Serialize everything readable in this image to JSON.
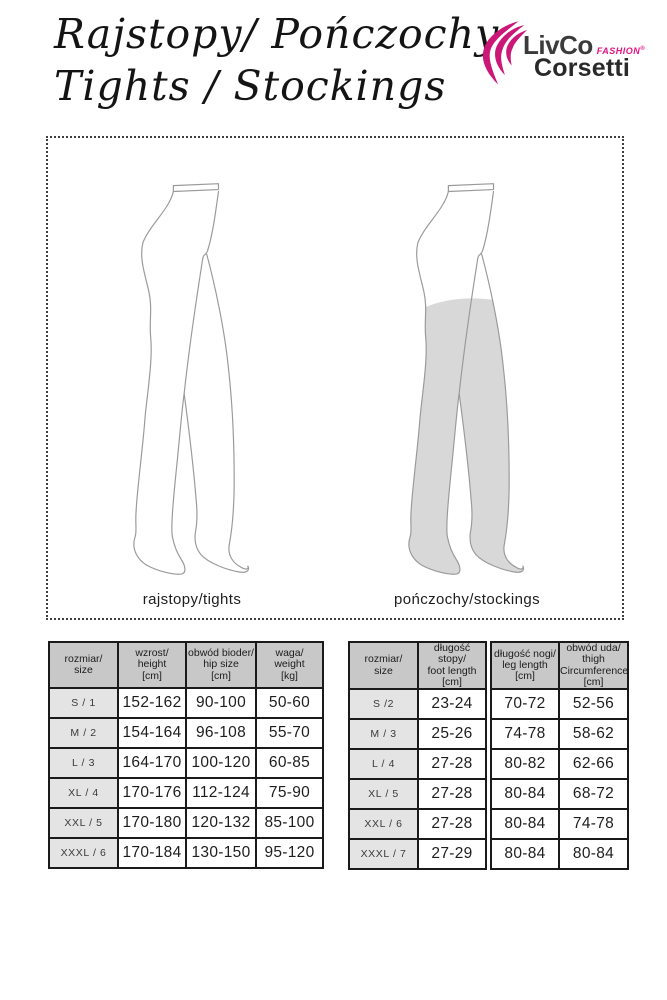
{
  "header": {
    "title_line1": "Rajstopy/ Pończochy",
    "title_line2": "Tights / Stockings",
    "logo": {
      "livco": "LivCo",
      "fashion": "FASHION",
      "registered": "®",
      "corsetti": "Corsetti",
      "swoosh_color": "#cb1777",
      "fashion_color": "#e31380",
      "dark_color": "#3b3b3b"
    }
  },
  "figures": {
    "tights_label": "rajstopy/tights",
    "stockings_label": "pończochy/stockings",
    "outline_color": "#9a9a9a",
    "stocking_fill": "#d8d8d8"
  },
  "size_tables": {
    "colors": {
      "header_bg": "#c8c8c8",
      "size_col_bg": "#e4e4e4",
      "border": "#1a1a1a"
    },
    "tights": {
      "headers": [
        "rozmiar/\nsize",
        "wzrost/\nheight\n[cm]",
        "obwód bioder/\nhip size\n[cm]",
        "waga/\nweight\n[kg]"
      ],
      "rows": [
        {
          "size": "S / 1",
          "c1": "152-162",
          "c2": "90-100",
          "c3": "50-60"
        },
        {
          "size": "M / 2",
          "c1": "154-164",
          "c2": "96-108",
          "c3": "55-70"
        },
        {
          "size": "L / 3",
          "c1": "164-170",
          "c2": "100-120",
          "c3": "60-85"
        },
        {
          "size": "XL / 4",
          "c1": "170-176",
          "c2": "112-124",
          "c3": "75-90"
        },
        {
          "size": "XXL / 5",
          "c1": "170-180",
          "c2": "120-132",
          "c3": "85-100"
        },
        {
          "size": "XXXL / 6",
          "c1": "170-184",
          "c2": "130-150",
          "c3": "95-120"
        }
      ]
    },
    "stockings": {
      "headers": [
        "rozmiar/\nsize",
        "długość stopy/\nfoot length\n[cm]",
        "długość nogi/\nleg length\n[cm]",
        "obwód uda/\nthigh\nCircumference\n[cm]"
      ],
      "rows": [
        {
          "size": "S /2",
          "c1": "23-24",
          "c2": "70-72",
          "c3": "52-56"
        },
        {
          "size": "M / 3",
          "c1": "25-26",
          "c2": "74-78",
          "c3": "58-62"
        },
        {
          "size": "L / 4",
          "c1": "27-28",
          "c2": "80-82",
          "c3": "62-66"
        },
        {
          "size": "XL / 5",
          "c1": "27-28",
          "c2": "80-84",
          "c3": "68-72"
        },
        {
          "size": "XXL / 6",
          "c1": "27-28",
          "c2": "80-84",
          "c3": "74-78"
        },
        {
          "size": "XXXL / 7",
          "c1": "27-29",
          "c2": "80-84",
          "c3": "80-84"
        }
      ]
    }
  }
}
